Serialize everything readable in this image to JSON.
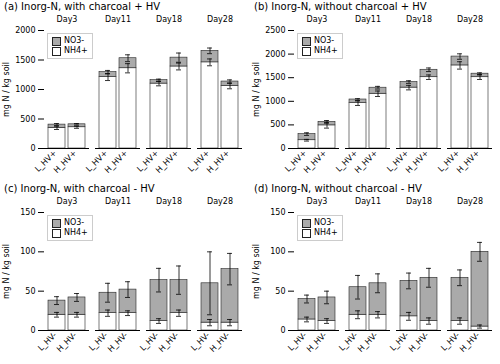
{
  "chart_data": [
    {
      "type": "bar",
      "stacked": true,
      "title": "(a) Inorg-N, with charcoal + HV",
      "ylabel": "mg N / kg soil",
      "groups": [
        "Day3",
        "Day11",
        "Day18",
        "Day28"
      ],
      "categories": [
        "L_HV+",
        "H_HV+",
        "L_HV+",
        "H_HV+",
        "L_HV+",
        "H_HV+",
        "L_HV+",
        "H_HV+"
      ],
      "series": [
        {
          "name": "NO3-",
          "color": "#aaaaaa",
          "values": [
            55,
            50,
            85,
            170,
            58,
            150,
            195,
            75
          ],
          "errors": [
            18,
            13,
            28,
            58,
            18,
            78,
            48,
            28
          ]
        },
        {
          "name": "NH4+",
          "color": "#ffffff",
          "values": [
            350,
            360,
            1210,
            1360,
            1100,
            1390,
            1460,
            1060
          ],
          "errors": [
            28,
            18,
            58,
            78,
            38,
            58,
            58,
            48
          ]
        }
      ],
      "ylim": [
        0,
        2000
      ],
      "yticks": [
        0,
        500,
        1000,
        1500,
        2000
      ],
      "legend": "upper left"
    },
    {
      "type": "bar",
      "stacked": true,
      "title": "(b) Inorg-N, without charcoal + HV",
      "ylabel": "mg N / kg soil",
      "groups": [
        "Day3",
        "Day11",
        "Day18",
        "Day28"
      ],
      "categories": [
        "L_HV+",
        "H_HV+",
        "L_HV+",
        "H_HV+",
        "L_HV+",
        "H_HV+",
        "L_HV+",
        "H_HV+"
      ],
      "series": [
        {
          "name": "NO3-",
          "color": "#aaaaaa",
          "values": [
            130,
            75,
            78,
            128,
            118,
            158,
            188,
            75
          ],
          "errors": [
            28,
            28,
            18,
            28,
            28,
            38,
            58,
            18
          ]
        },
        {
          "name": "NH4+",
          "color": "#ffffff",
          "values": [
            175,
            490,
            960,
            1160,
            1290,
            1510,
            1760,
            1510
          ],
          "errors": [
            18,
            58,
            48,
            58,
            48,
            48,
            78,
            48
          ]
        }
      ],
      "ylim": [
        0,
        2500
      ],
      "yticks": [
        0,
        500,
        1000,
        1500,
        2000,
        2500
      ],
      "legend": "upper left"
    },
    {
      "type": "bar",
      "stacked": true,
      "title": "(c) Inorg-N, with charcoal - HV",
      "ylabel": "mg N / kg soil",
      "groups": [
        "Day3",
        "Day11",
        "Day18",
        "Day28"
      ],
      "categories": [
        "L_HV-",
        "H_HV-",
        "L_HV-",
        "H_HV-",
        "L_HV-",
        "H_HV-",
        "L_HV-",
        "H_HV-"
      ],
      "series": [
        {
          "name": "NO3-",
          "color": "#aaaaaa",
          "values": [
            18,
            22,
            26,
            30,
            52,
            42,
            50,
            68
          ],
          "errors": [
            5,
            5,
            12,
            10,
            15,
            18,
            40,
            20
          ]
        },
        {
          "name": "NH4+",
          "color": "#ffffff",
          "values": [
            20,
            20,
            22,
            22,
            12,
            22,
            10,
            10
          ],
          "errors": [
            3,
            3,
            4,
            3,
            3,
            4,
            4,
            4
          ]
        }
      ],
      "ylim": [
        0,
        150
      ],
      "yticks": [
        0,
        50,
        100,
        150
      ],
      "legend": "upper left"
    },
    {
      "type": "bar",
      "stacked": true,
      "title": "(d) Inorg-N, without charcoal - HV",
      "ylabel": "mg N / kg soil",
      "groups": [
        "Day3",
        "Day11",
        "Day18",
        "Day28"
      ],
      "categories": [
        "L_HV-",
        "H_HV-",
        "L_HV-",
        "H_HV-",
        "L_HV-",
        "H_HV-",
        "L_HV-",
        "H_HV-"
      ],
      "series": [
        {
          "name": "NO3-",
          "color": "#aaaaaa",
          "values": [
            26,
            30,
            35,
            40,
            45,
            55,
            55,
            95
          ],
          "errors": [
            5,
            8,
            15,
            12,
            10,
            12,
            10,
            12
          ]
        },
        {
          "name": "NH4+",
          "color": "#ffffff",
          "values": [
            14,
            12,
            20,
            20,
            18,
            12,
            12,
            5
          ],
          "errors": [
            3,
            3,
            5,
            4,
            5,
            4,
            4,
            2
          ]
        }
      ],
      "ylim": [
        0,
        150
      ],
      "yticks": [
        0,
        50,
        100,
        150
      ],
      "legend": "upper left"
    }
  ]
}
